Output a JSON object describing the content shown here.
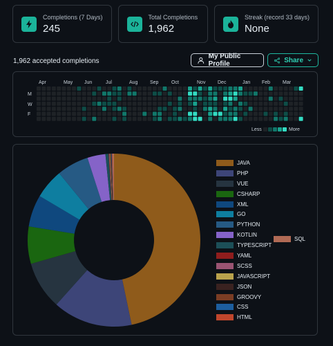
{
  "stats": [
    {
      "label": "Completions (7 Days)",
      "value": "245",
      "icon": "bolt-icon"
    },
    {
      "label": "Total Completions",
      "value": "1,962",
      "icon": "code-icon"
    },
    {
      "label": "Streak (record 33 days)",
      "value": "None",
      "icon": "fire-icon"
    }
  ],
  "summary": {
    "accepted_text": "1,962 accepted completions"
  },
  "buttons": {
    "profile_label": "My Public Profile",
    "share_label": "Share"
  },
  "heatmap": {
    "months": [
      "Apr",
      "May",
      "Jun",
      "Jul",
      "Aug",
      "Sep",
      "Oct",
      "Nov",
      "Dec",
      "Jan",
      "Feb",
      "Mar"
    ],
    "day_labels": [
      "M",
      "W",
      "F"
    ],
    "legend_less": "Less",
    "legend_more": "More",
    "colors": [
      "#1e2226",
      "#0e4d47",
      "#11776a",
      "#18a38e",
      "#33dcc3"
    ]
  },
  "chart_data": {
    "type": "pie",
    "donut": true,
    "categories": [
      "JAVA",
      "PHP",
      "VUE",
      "CSHARP",
      "XML",
      "GO",
      "PYTHON",
      "KOTLIN",
      "TYPESCRIPT",
      "YAML",
      "SCSS",
      "JAVASCRIPT",
      "JSON",
      "GROOVY",
      "CSS",
      "HTML",
      "SQL"
    ],
    "values": [
      47.0,
      15.0,
      9.0,
      7.0,
      6.0,
      5.6,
      6.0,
      3.4,
      0.6,
      0.1,
      0.1,
      0.1,
      0.1,
      0.1,
      0.1,
      0.1,
      0.3
    ],
    "colors": [
      "#8f5b1b",
      "#3d4578",
      "#263440",
      "#1a6610",
      "#0f487e",
      "#0e7ea0",
      "#265a84",
      "#8563c8",
      "#1c4f58",
      "#8f1d1d",
      "#9a5472",
      "#b9a24c",
      "#3a2220",
      "#7a3d24",
      "#1d5e9e",
      "#c0462c",
      "#b06a55"
    ],
    "legend_position": "right"
  }
}
